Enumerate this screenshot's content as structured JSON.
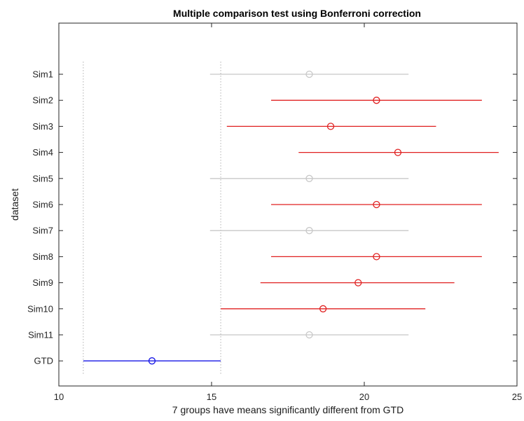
{
  "chart_data": {
    "type": "scatter",
    "title": "Multiple comparison test using Bonferroni correction",
    "xlabel": "7 groups have means significantly different from GTD",
    "ylabel": "dataset",
    "xlim": [
      10,
      25
    ],
    "xticks": [
      10,
      15,
      20,
      25
    ],
    "categories": [
      "Sim1",
      "Sim2",
      "Sim3",
      "Sim4",
      "Sim5",
      "Sim6",
      "Sim7",
      "Sim8",
      "Sim9",
      "Sim10",
      "Sim11",
      "GTD"
    ],
    "means": [
      18.2,
      20.4,
      18.9,
      21.1,
      18.2,
      20.4,
      18.2,
      20.4,
      19.8,
      18.65,
      18.2,
      13.05
    ],
    "lower": [
      14.95,
      16.95,
      15.5,
      17.85,
      14.95,
      16.95,
      14.95,
      16.95,
      16.6,
      15.3,
      14.95,
      10.8
    ],
    "upper": [
      21.45,
      23.85,
      22.35,
      24.4,
      21.45,
      23.85,
      21.45,
      23.85,
      22.95,
      22.0,
      21.45,
      15.3
    ],
    "status": [
      "same",
      "different",
      "different",
      "different",
      "same",
      "different",
      "same",
      "different",
      "different",
      "different",
      "same",
      "reference"
    ],
    "reference_interval": [
      10.8,
      15.3
    ],
    "colors": {
      "same": "#c8c8c8",
      "different": "#e02020",
      "reference": "#1515e6",
      "refline": "#b0b0b0"
    },
    "grid": false
  }
}
